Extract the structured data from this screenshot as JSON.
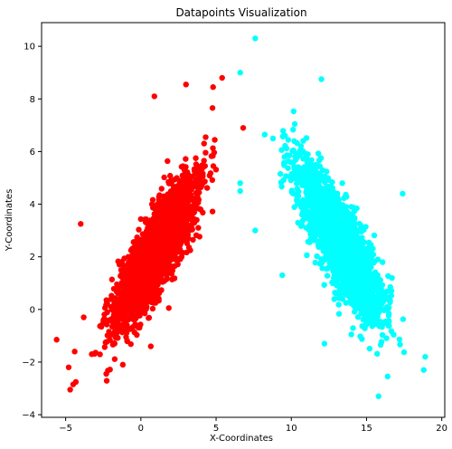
{
  "chart_data": {
    "type": "scatter",
    "title": "Datapoints Visualization",
    "xlabel": "X-Coordinates",
    "ylabel": "Y-Coordinates",
    "xlim": [
      -6.6,
      20.2
    ],
    "ylim": [
      -4.1,
      10.9
    ],
    "xticks": [
      -5,
      0,
      5,
      10,
      15,
      20
    ],
    "yticks": [
      -4,
      -2,
      0,
      2,
      4,
      6,
      8,
      10
    ],
    "grid": false,
    "legend": "none",
    "series": [
      {
        "color": "#ff0000",
        "distribution": {
          "kind": "gaussian-cluster",
          "count": 2600,
          "center": [
            1.0,
            2.2
          ],
          "major_axis_slope": 1.0,
          "std_major": 1.8,
          "std_minor": 0.55
        },
        "outliers": [
          [
            -5.6,
            -1.15
          ],
          [
            -4.8,
            -2.2
          ],
          [
            -4.7,
            -3.05
          ],
          [
            -4.5,
            -2.85
          ],
          [
            -4.4,
            -1.6
          ],
          [
            -4.0,
            3.25
          ],
          [
            -3.8,
            -0.3
          ],
          [
            3.0,
            8.55
          ],
          [
            5.4,
            8.8
          ],
          [
            4.8,
            8.45
          ],
          [
            0.9,
            8.1
          ],
          [
            6.8,
            6.9
          ],
          [
            -2.3,
            -2.45
          ],
          [
            -1.2,
            -2.1
          ]
        ]
      },
      {
        "color": "#00ffff",
        "distribution": {
          "kind": "gaussian-cluster",
          "count": 2600,
          "center": [
            13.3,
            2.5
          ],
          "major_axis_slope": -1.05,
          "std_major": 1.8,
          "std_minor": 0.55
        },
        "outliers": [
          [
            7.6,
            10.3
          ],
          [
            6.6,
            9.0
          ],
          [
            12.0,
            8.75
          ],
          [
            15.8,
            -3.3
          ],
          [
            16.4,
            -2.55
          ],
          [
            18.8,
            -2.3
          ],
          [
            18.9,
            -1.8
          ],
          [
            17.4,
            4.4
          ],
          [
            6.6,
            4.8
          ],
          [
            6.6,
            4.5
          ],
          [
            7.6,
            3.0
          ],
          [
            9.4,
            1.3
          ],
          [
            12.2,
            -1.3
          ]
        ]
      }
    ]
  }
}
